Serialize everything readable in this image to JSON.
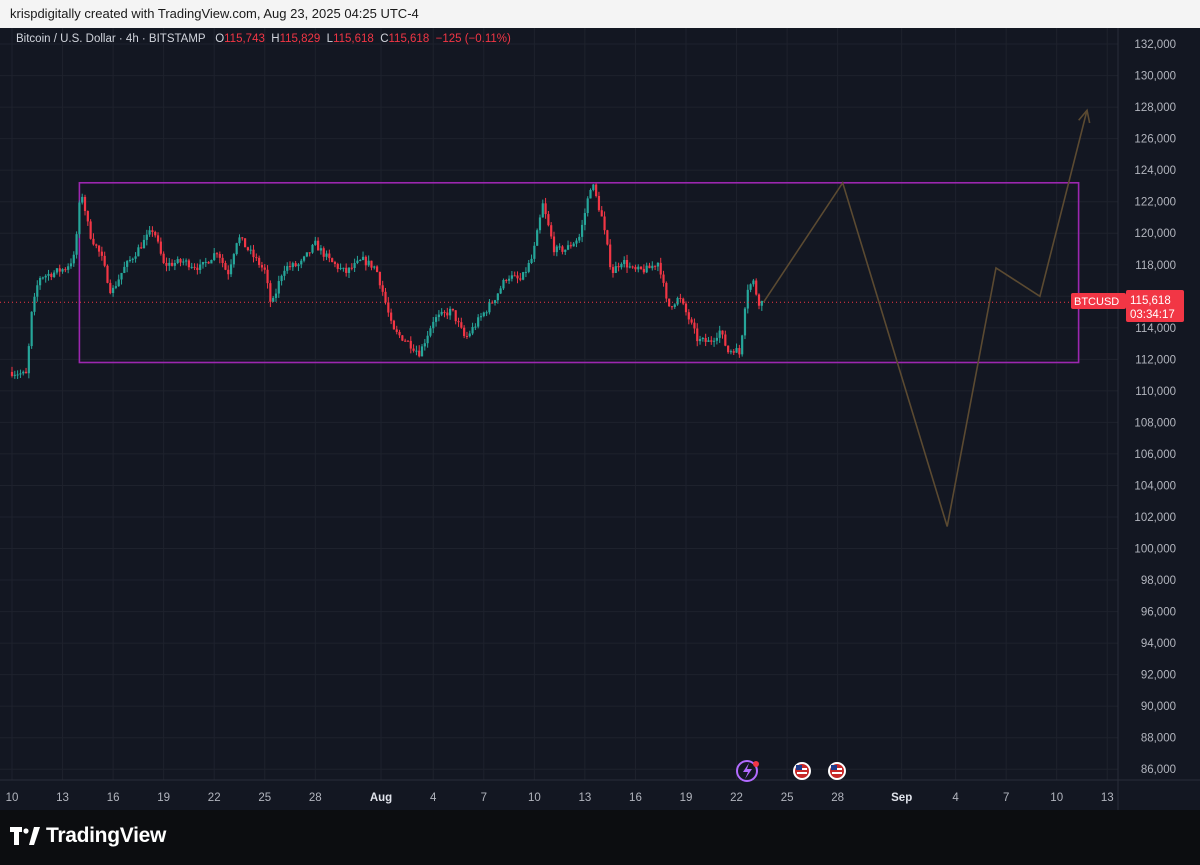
{
  "header": {
    "caption": "krispdigitally created with TradingView.com, Aug 23, 2025 04:25 UTC-4"
  },
  "legend": {
    "symbol": "Bitcoin / U.S. Dollar · 4h · BITSTAMP",
    "o_label": "O",
    "o_value": "115,743",
    "h_label": "H",
    "h_value": "115,829",
    "l_label": "L",
    "l_value": "115,618",
    "c_label": "C",
    "c_value": "115,618",
    "change": "−125 (−0.11%)"
  },
  "price_tag": {
    "ticker": "BTCUSD",
    "price": "115,618",
    "countdown": "03:34:17"
  },
  "footer": {
    "brand": "TradingView"
  },
  "colors": {
    "up": "#26a69a",
    "down": "#f23645",
    "box": "#9c27b0",
    "projection": "#5b4a31",
    "background": "#131722",
    "grid": "#1e222d"
  },
  "chart_data": {
    "type": "candlestick",
    "y_axis": {
      "min": 85000,
      "max": 133000,
      "ticks": [
        "132,000",
        "130,000",
        "128,000",
        "126,000",
        "124,000",
        "122,000",
        "120,000",
        "118,000",
        "116,000",
        "114,000",
        "112,000",
        "110,000",
        "108,000",
        "106,000",
        "104,000",
        "102,000",
        "100,000",
        "98,000",
        "96,000",
        "94,000",
        "92,000",
        "90,000",
        "88,000",
        "86,000"
      ]
    },
    "x_axis": {
      "ticks": [
        "10",
        "13",
        "16",
        "19",
        "22",
        "25",
        "28",
        "Aug",
        "4",
        "7",
        "10",
        "13",
        "16",
        "19",
        "22",
        "25",
        "28",
        "Sep",
        "4",
        "7",
        "10",
        "13"
      ],
      "tick_days": [
        0,
        3,
        6,
        9,
        12,
        15,
        18,
        21.9,
        25,
        28,
        31,
        34,
        37,
        40,
        43,
        46,
        49,
        52.8,
        56,
        59,
        62,
        65
      ]
    },
    "price_path": [
      {
        "day": 0.0,
        "price": 111200
      },
      {
        "day": 0.9,
        "price": 111000
      },
      {
        "day": 1.1,
        "price": 114500
      },
      {
        "day": 1.6,
        "price": 117200
      },
      {
        "day": 2.5,
        "price": 117500
      },
      {
        "day": 3.2,
        "price": 117800
      },
      {
        "day": 3.7,
        "price": 118500
      },
      {
        "day": 4.1,
        "price": 122800
      },
      {
        "day": 4.6,
        "price": 120000
      },
      {
        "day": 5.3,
        "price": 118500
      },
      {
        "day": 5.9,
        "price": 116200
      },
      {
        "day": 6.6,
        "price": 117700
      },
      {
        "day": 7.5,
        "price": 119000
      },
      {
        "day": 8.4,
        "price": 120300
      },
      {
        "day": 9.0,
        "price": 118000
      },
      {
        "day": 10.2,
        "price": 118200
      },
      {
        "day": 11.2,
        "price": 117800
      },
      {
        "day": 12.2,
        "price": 118900
      },
      {
        "day": 12.8,
        "price": 117400
      },
      {
        "day": 13.4,
        "price": 119800
      },
      {
        "day": 14.2,
        "price": 118700
      },
      {
        "day": 15.0,
        "price": 117600
      },
      {
        "day": 15.4,
        "price": 115300
      },
      {
        "day": 16.1,
        "price": 117800
      },
      {
        "day": 17.1,
        "price": 118000
      },
      {
        "day": 18.0,
        "price": 119300
      },
      {
        "day": 18.9,
        "price": 118200
      },
      {
        "day": 19.8,
        "price": 117500
      },
      {
        "day": 20.8,
        "price": 118300
      },
      {
        "day": 21.6,
        "price": 117800
      },
      {
        "day": 22.0,
        "price": 116300
      },
      {
        "day": 22.6,
        "price": 113800
      },
      {
        "day": 23.4,
        "price": 113200
      },
      {
        "day": 24.2,
        "price": 112400
      },
      {
        "day": 25.0,
        "price": 114500
      },
      {
        "day": 26.1,
        "price": 115100
      },
      {
        "day": 26.9,
        "price": 113300
      },
      {
        "day": 27.7,
        "price": 114500
      },
      {
        "day": 28.6,
        "price": 115800
      },
      {
        "day": 29.4,
        "price": 117300
      },
      {
        "day": 30.2,
        "price": 117000
      },
      {
        "day": 30.9,
        "price": 118500
      },
      {
        "day": 31.5,
        "price": 121800
      },
      {
        "day": 32.2,
        "price": 118900
      },
      {
        "day": 32.9,
        "price": 119000
      },
      {
        "day": 33.7,
        "price": 119800
      },
      {
        "day": 34.4,
        "price": 123300
      },
      {
        "day": 35.0,
        "price": 121000
      },
      {
        "day": 35.6,
        "price": 117500
      },
      {
        "day": 36.2,
        "price": 118300
      },
      {
        "day": 36.9,
        "price": 117600
      },
      {
        "day": 37.7,
        "price": 117700
      },
      {
        "day": 38.4,
        "price": 118200
      },
      {
        "day": 38.9,
        "price": 115300
      },
      {
        "day": 39.6,
        "price": 115900
      },
      {
        "day": 40.2,
        "price": 114500
      },
      {
        "day": 40.7,
        "price": 113200
      },
      {
        "day": 41.4,
        "price": 113100
      },
      {
        "day": 42.0,
        "price": 113800
      },
      {
        "day": 42.5,
        "price": 112500
      },
      {
        "day": 42.9,
        "price": 112700
      },
      {
        "day": 43.2,
        "price": 112300
      },
      {
        "day": 43.6,
        "price": 116500
      },
      {
        "day": 44.0,
        "price": 116900
      },
      {
        "day": 44.3,
        "price": 115650
      },
      {
        "day": 44.6,
        "price": 115618
      }
    ],
    "range_box": {
      "day_start": 4.0,
      "day_end": 63.3,
      "price_top": 123200,
      "price_bottom": 111800
    },
    "projection_path": [
      {
        "day": 44.6,
        "price": 115618
      },
      {
        "day": 49.3,
        "price": 123200
      },
      {
        "day": 55.5,
        "price": 101400
      },
      {
        "day": 58.4,
        "price": 117800
      },
      {
        "day": 61.0,
        "price": 116000
      },
      {
        "day": 63.8,
        "price": 127800
      }
    ],
    "current_price": 115618,
    "grid": true
  }
}
